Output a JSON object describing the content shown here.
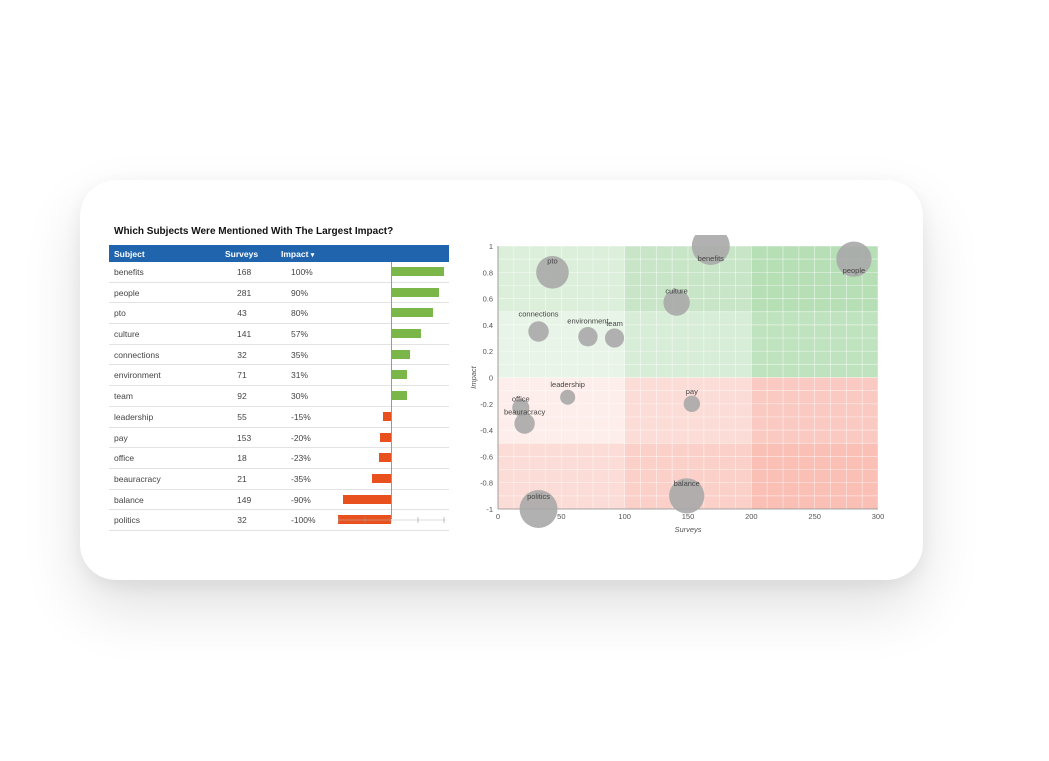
{
  "table": {
    "title": "Which Subjects Were Mentioned With The Largest Impact?",
    "headers": {
      "subject": "Subject",
      "surveys": "Surveys",
      "impact": "Impact",
      "sort_icon": "▾"
    },
    "rows": [
      {
        "subject": "benefits",
        "surveys": "168",
        "impact": "100%",
        "value": 100
      },
      {
        "subject": "people",
        "surveys": "281",
        "impact": "90%",
        "value": 90
      },
      {
        "subject": "pto",
        "surveys": "43",
        "impact": "80%",
        "value": 80
      },
      {
        "subject": "culture",
        "surveys": "141",
        "impact": "57%",
        "value": 57
      },
      {
        "subject": "connections",
        "surveys": "32",
        "impact": "35%",
        "value": 35
      },
      {
        "subject": "environment",
        "surveys": "71",
        "impact": "31%",
        "value": 31
      },
      {
        "subject": "team",
        "surveys": "92",
        "impact": "30%",
        "value": 30
      },
      {
        "subject": "leadership",
        "surveys": "55",
        "impact": "-15%",
        "value": -15
      },
      {
        "subject": "pay",
        "surveys": "153",
        "impact": "-20%",
        "value": -20
      },
      {
        "subject": "office",
        "surveys": "18",
        "impact": "-23%",
        "value": -23
      },
      {
        "subject": "beauracracy",
        "surveys": "21",
        "impact": "-35%",
        "value": -35
      },
      {
        "subject": "balance",
        "surveys": "149",
        "impact": "-90%",
        "value": -90
      },
      {
        "subject": "politics",
        "surveys": "32",
        "impact": "-100%",
        "value": -100
      }
    ],
    "colors": {
      "header_bg": "#1f64ad",
      "positive": "#7ab648",
      "negative": "#e8501e"
    }
  },
  "chart_data": {
    "type": "scatter",
    "xlabel": "Surveys",
    "ylabel": "Impact",
    "xlim": [
      0,
      300
    ],
    "ylim": [
      -1,
      1
    ],
    "xticks": [
      0,
      50,
      100,
      150,
      200,
      250,
      300
    ],
    "yticks": [
      1,
      0.8,
      0.6,
      0.4,
      0.2,
      0,
      -0.2,
      -0.4,
      -0.6,
      -0.8,
      -1
    ],
    "grid": true,
    "points": [
      {
        "label": "benefits",
        "x": 168,
        "y": 1.0
      },
      {
        "label": "people",
        "x": 281,
        "y": 0.9
      },
      {
        "label": "pto",
        "x": 43,
        "y": 0.8
      },
      {
        "label": "culture",
        "x": 141,
        "y": 0.57
      },
      {
        "label": "connections",
        "x": 32,
        "y": 0.35
      },
      {
        "label": "environment",
        "x": 71,
        "y": 0.31
      },
      {
        "label": "team",
        "x": 92,
        "y": 0.3
      },
      {
        "label": "leadership",
        "x": 55,
        "y": -0.15
      },
      {
        "label": "pay",
        "x": 153,
        "y": -0.2
      },
      {
        "label": "office",
        "x": 18,
        "y": -0.23
      },
      {
        "label": "beauracracy",
        "x": 21,
        "y": -0.35
      },
      {
        "label": "balance",
        "x": 149,
        "y": -0.9
      },
      {
        "label": "politics",
        "x": 32,
        "y": -1.0
      }
    ],
    "colors": {
      "bubble": "#a8a8a8",
      "positive_zone": "#7cc47a",
      "negative_zone": "#f58a78"
    }
  }
}
